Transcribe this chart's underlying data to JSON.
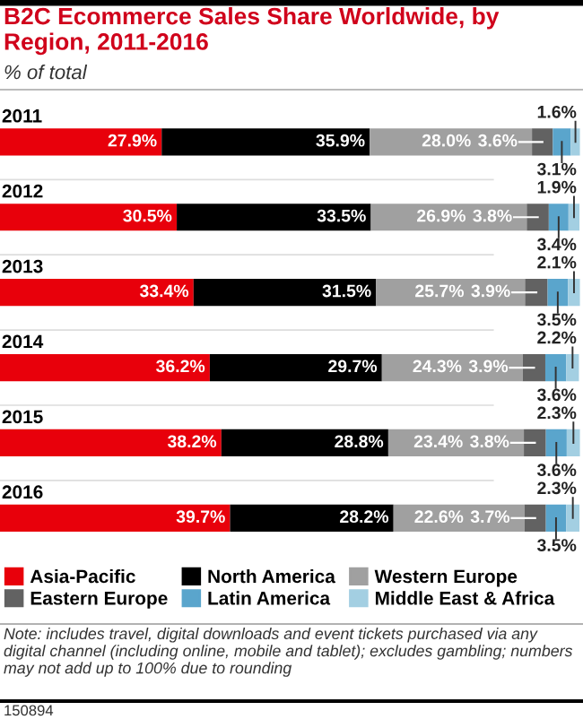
{
  "chart_data": {
    "type": "bar",
    "orientation": "horizontal",
    "stacked": true,
    "title": "B2C Ecommerce Sales Share Worldwide, by Region, 2011-2016",
    "subtitle": "% of total",
    "categories": [
      "2011",
      "2012",
      "2013",
      "2014",
      "2015",
      "2016"
    ],
    "series": [
      {
        "name": "Asia-Pacific",
        "color": "#e8000b",
        "values": [
          27.9,
          30.5,
          33.4,
          36.2,
          38.2,
          39.7
        ],
        "value_labels": [
          "27.9%",
          "30.5%",
          "33.4%",
          "36.2%",
          "38.2%",
          "39.7%"
        ]
      },
      {
        "name": "North America",
        "color": "#000000",
        "values": [
          35.9,
          33.5,
          31.5,
          29.7,
          28.8,
          28.2
        ],
        "value_labels": [
          "35.9%",
          "33.5%",
          "31.5%",
          "29.7%",
          "28.8%",
          "28.2%"
        ]
      },
      {
        "name": "Western Europe",
        "color": "#a0a0a0",
        "values": [
          28.0,
          26.9,
          25.7,
          24.3,
          23.4,
          22.6
        ],
        "value_labels": [
          "28.0%",
          "26.9%",
          "25.7%",
          "24.3%",
          "23.4%",
          "22.6%"
        ]
      },
      {
        "name": "Eastern Europe",
        "color": "#626262",
        "values": [
          3.6,
          3.8,
          3.9,
          3.9,
          3.8,
          3.7
        ],
        "value_labels": [
          "3.6%",
          "3.8%",
          "3.9%",
          "3.9%",
          "3.8%",
          "3.7%"
        ]
      },
      {
        "name": "Latin America",
        "color": "#5aa5cc",
        "values": [
          3.1,
          3.4,
          3.5,
          3.6,
          3.6,
          3.5
        ],
        "value_labels": [
          "3.1%",
          "3.4%",
          "3.5%",
          "3.6%",
          "3.6%",
          "3.5%"
        ]
      },
      {
        "name": "Middle East & Africa",
        "color": "#a3cfe2",
        "values": [
          1.6,
          1.9,
          2.1,
          2.2,
          2.3,
          2.3
        ],
        "value_labels": [
          "1.6%",
          "1.9%",
          "2.1%",
          "2.2%",
          "2.3%",
          "2.3%"
        ]
      }
    ],
    "legend": "bottom",
    "annotations": [
      "Note: includes travel, digital downloads and event tickets purchased via any digital channel (including online, mobile and tablet); excludes gambling; numbers may not add up to 100% due to rounding",
      "150894"
    ]
  }
}
